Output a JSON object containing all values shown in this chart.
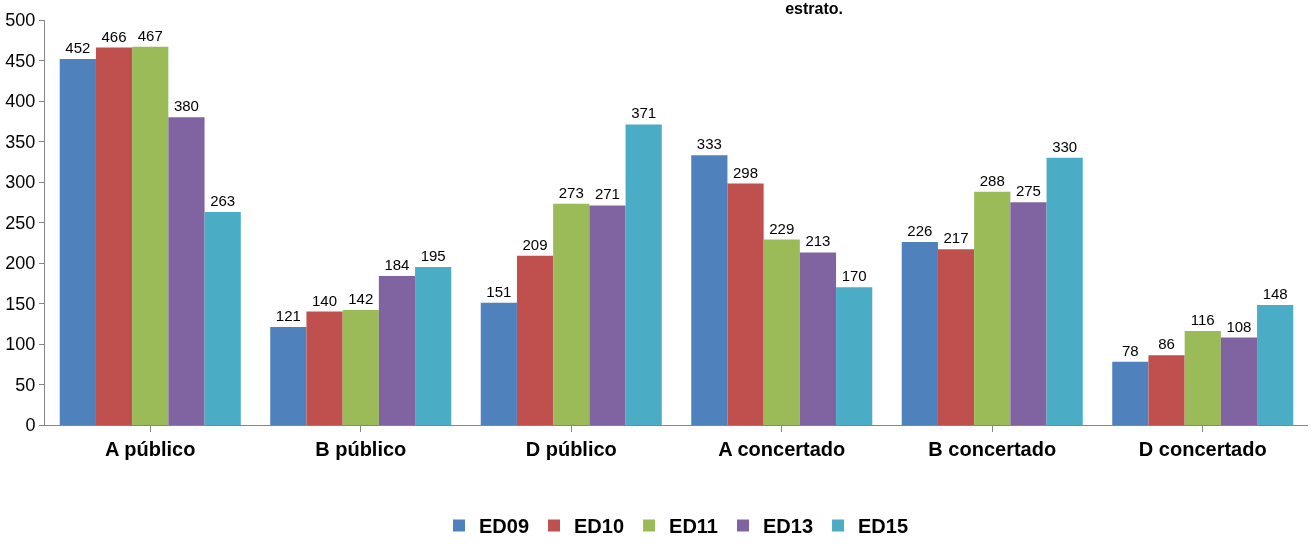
{
  "chart_data": {
    "type": "bar",
    "title": "estrato.",
    "categories": [
      "A público",
      "B público",
      "D público",
      "A concertado",
      "B concertado",
      "D concertado"
    ],
    "series": [
      {
        "name": "ED09",
        "color": "#4f81bd",
        "values": [
          452,
          121,
          151,
          333,
          226,
          78
        ]
      },
      {
        "name": "ED10",
        "color": "#c0504d",
        "values": [
          466,
          140,
          209,
          298,
          217,
          86
        ]
      },
      {
        "name": "ED11",
        "color": "#9bbb59",
        "values": [
          467,
          142,
          273,
          229,
          288,
          116
        ]
      },
      {
        "name": "ED13",
        "color": "#8064a2",
        "values": [
          380,
          184,
          271,
          213,
          275,
          108
        ]
      },
      {
        "name": "ED15",
        "color": "#4bacc6",
        "values": [
          263,
          195,
          371,
          170,
          330,
          148
        ]
      }
    ],
    "ylim": [
      0,
      500
    ],
    "yticks": [
      0,
      50,
      100,
      150,
      200,
      250,
      300,
      350,
      400,
      450,
      500
    ],
    "grid": false,
    "legend": "bottom",
    "data_labels": true
  }
}
